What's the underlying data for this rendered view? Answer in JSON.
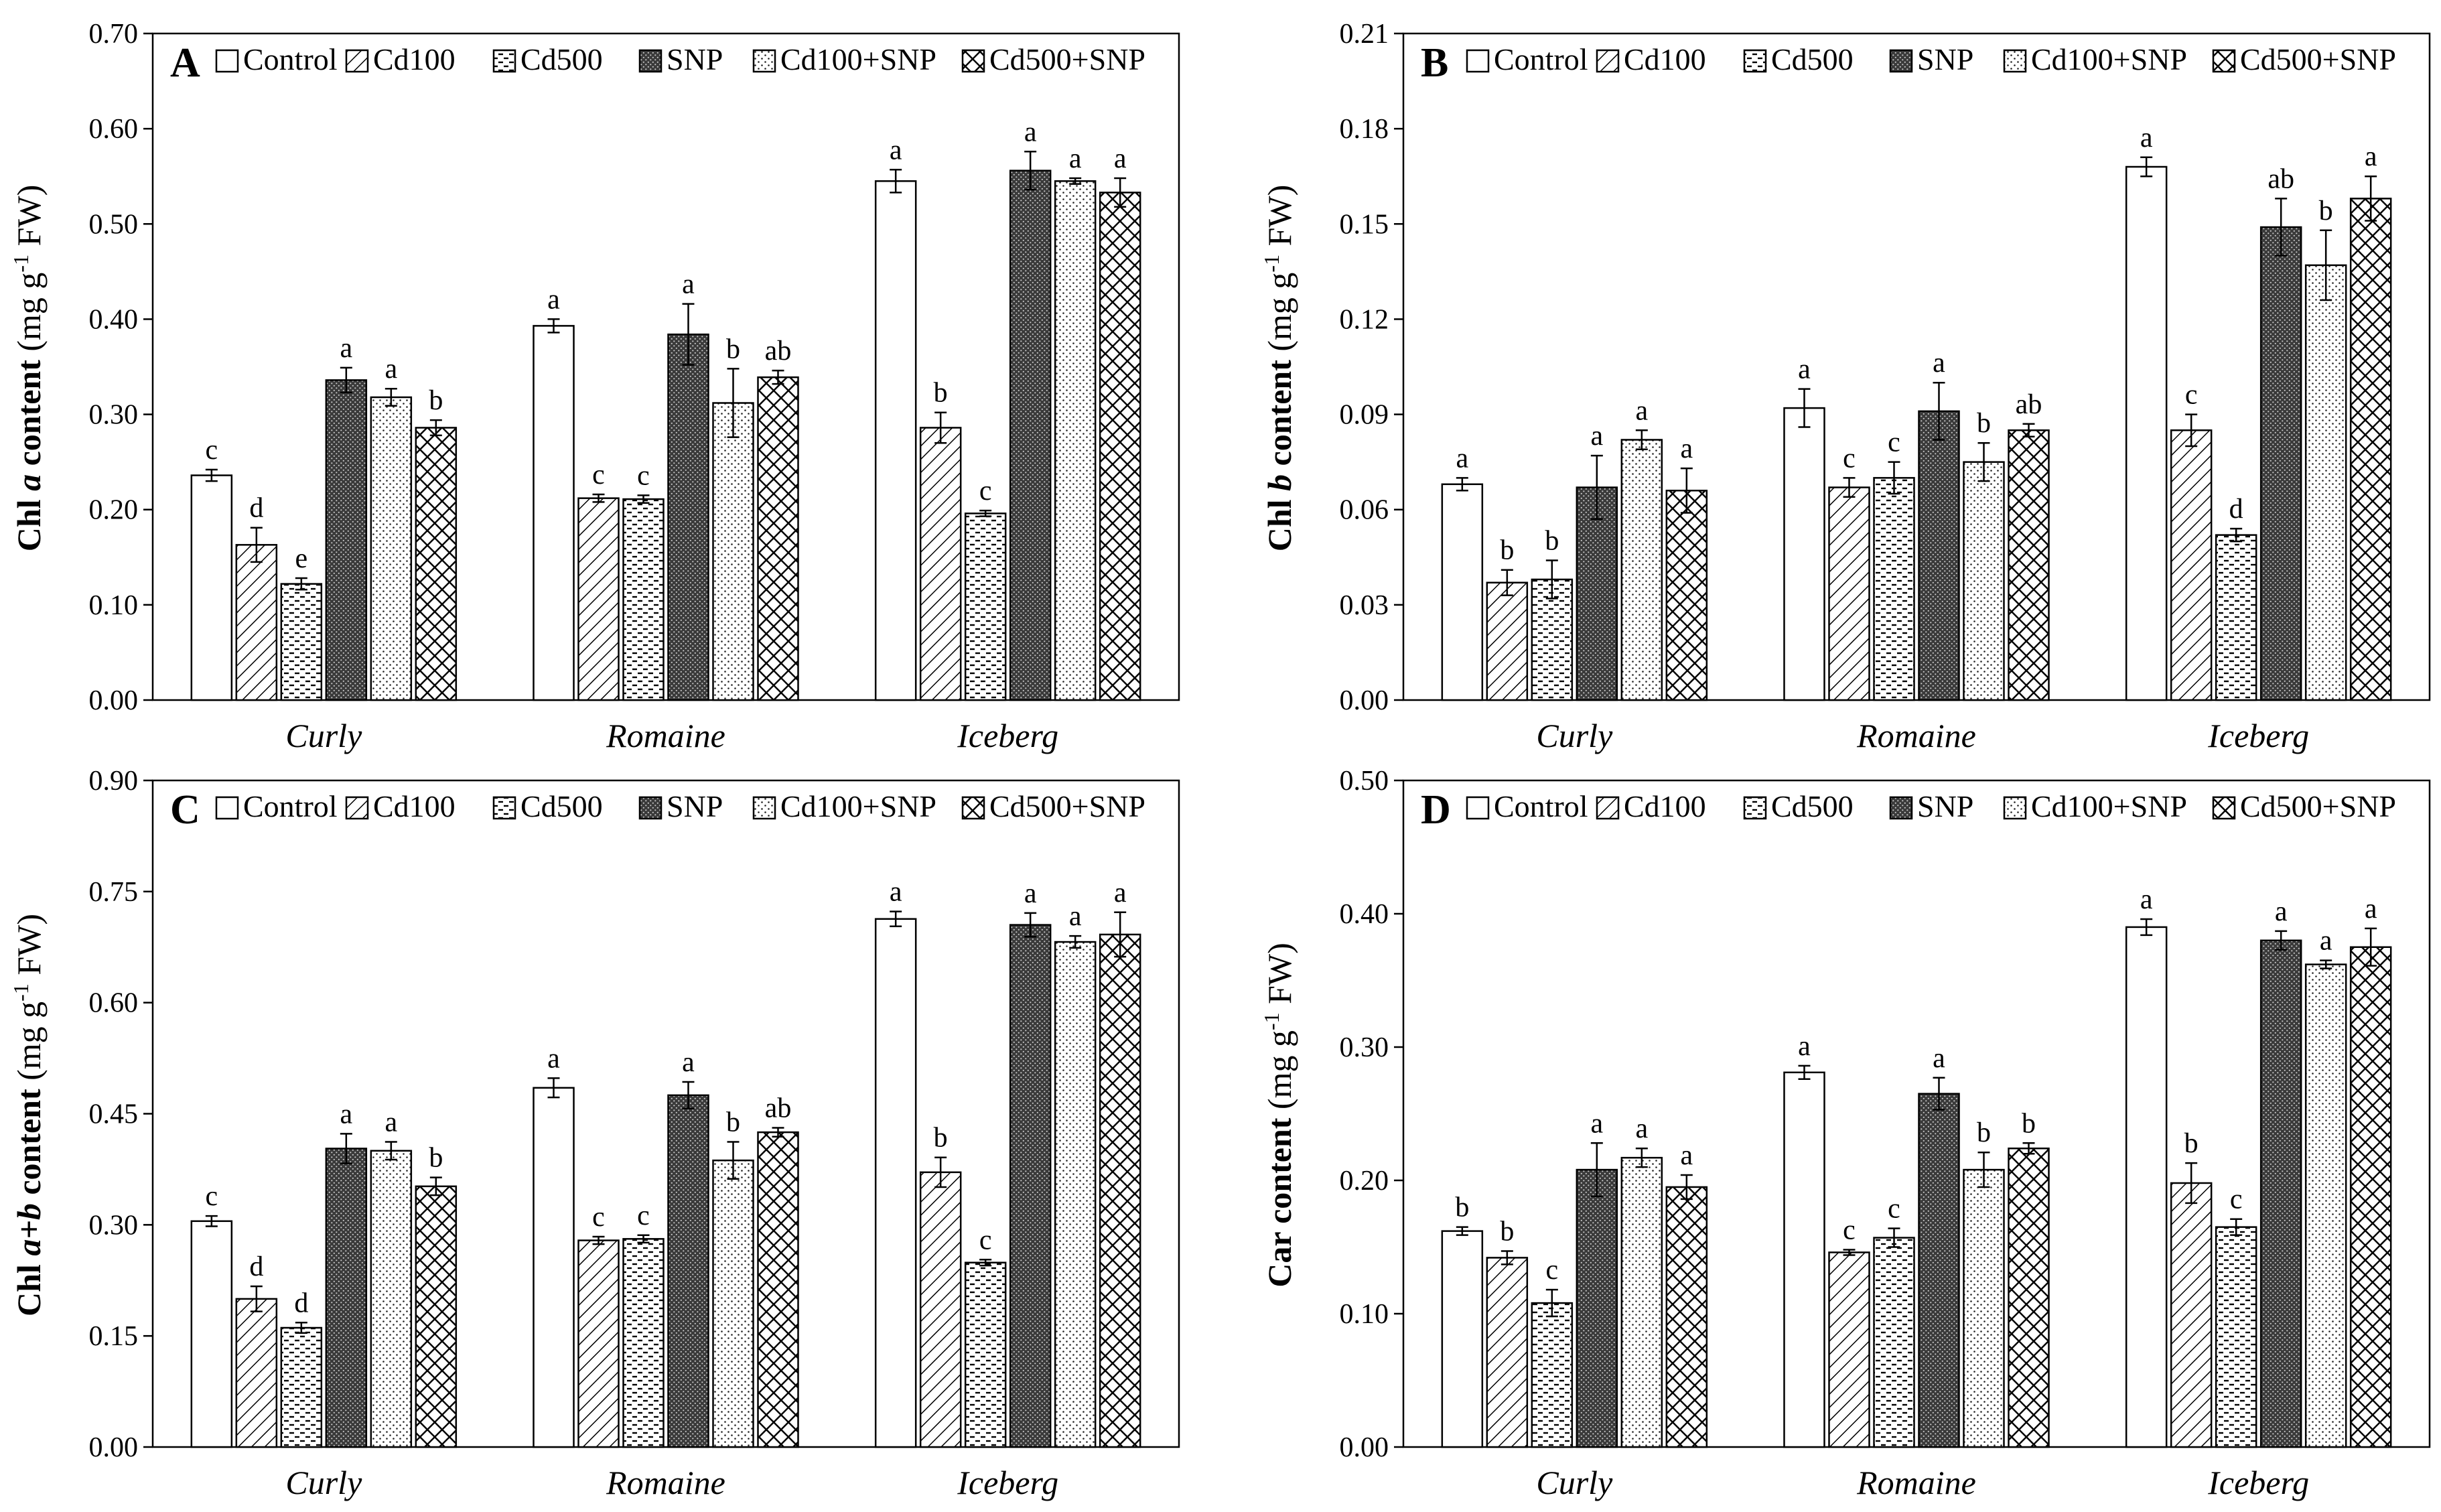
{
  "legend": [
    "Control",
    "Cd100",
    "Cd500",
    "SNP",
    "Cd100+SNP",
    "Cd500+SNP"
  ],
  "categories": [
    "Curly",
    "Romaine",
    "Iceberg"
  ],
  "chart_data": [
    {
      "type": "bar",
      "panel": "A",
      "ylabel": {
        "bold": "Chl ",
        "italic": "a",
        "bold2": " content",
        "unit": "(mg  g",
        "sup": "-1",
        "unit2": " FW)"
      },
      "ylim": [
        0,
        0.7
      ],
      "yticks": [
        0,
        0.1,
        0.2,
        0.3,
        0.4,
        0.5,
        0.6,
        0.7
      ],
      "tick_decimals": 2,
      "categories": [
        "Curly",
        "Romaine",
        "Iceberg"
      ],
      "series": [
        {
          "name": "Control",
          "values": [
            0.236,
            0.393,
            0.545
          ],
          "errors": [
            0.006,
            0.007,
            0.012
          ],
          "letters": [
            "c",
            "a",
            "a"
          ]
        },
        {
          "name": "Cd100",
          "values": [
            0.163,
            0.212,
            0.286
          ],
          "errors": [
            0.018,
            0.004,
            0.016
          ],
          "letters": [
            "d",
            "c",
            "b"
          ]
        },
        {
          "name": "Cd500",
          "values": [
            0.122,
            0.211,
            0.196
          ],
          "errors": [
            0.006,
            0.004,
            0.003
          ],
          "letters": [
            "e",
            "c",
            "c"
          ]
        },
        {
          "name": "SNP",
          "values": [
            0.336,
            0.384,
            0.556
          ],
          "errors": [
            0.013,
            0.032,
            0.02
          ],
          "letters": [
            "a",
            "a",
            "a"
          ]
        },
        {
          "name": "Cd100+SNP",
          "values": [
            0.318,
            0.312,
            0.545
          ],
          "errors": [
            0.009,
            0.036,
            0.003
          ],
          "letters": [
            "a",
            "b",
            "a"
          ]
        },
        {
          "name": "Cd500+SNP",
          "values": [
            0.286,
            0.339,
            0.533
          ],
          "errors": [
            0.008,
            0.007,
            0.015
          ],
          "letters": [
            "b",
            "ab",
            "a"
          ]
        }
      ]
    },
    {
      "type": "bar",
      "panel": "B",
      "ylabel": {
        "bold": "Chl ",
        "italic": "b",
        "bold2": " content",
        "unit": "(mg  g",
        "sup": "-1",
        "unit2": " FW)"
      },
      "ylim": [
        0,
        0.21
      ],
      "yticks": [
        0,
        0.03,
        0.06,
        0.09,
        0.12,
        0.15,
        0.18,
        0.21
      ],
      "tick_decimals": 2,
      "categories": [
        "Curly",
        "Romaine",
        "Iceberg"
      ],
      "series": [
        {
          "name": "Control",
          "values": [
            0.068,
            0.092,
            0.168
          ],
          "errors": [
            0.002,
            0.006,
            0.003
          ],
          "letters": [
            "a",
            "a",
            "a"
          ]
        },
        {
          "name": "Cd100",
          "values": [
            0.037,
            0.067,
            0.085
          ],
          "errors": [
            0.004,
            0.003,
            0.005
          ],
          "letters": [
            "b",
            "c",
            "c"
          ]
        },
        {
          "name": "Cd500",
          "values": [
            0.038,
            0.07,
            0.052
          ],
          "errors": [
            0.006,
            0.005,
            0.002
          ],
          "letters": [
            "b",
            "c",
            "d"
          ]
        },
        {
          "name": "SNP",
          "values": [
            0.067,
            0.091,
            0.149
          ],
          "errors": [
            0.01,
            0.009,
            0.009
          ],
          "letters": [
            "a",
            "a",
            "ab"
          ]
        },
        {
          "name": "Cd100+SNP",
          "values": [
            0.082,
            0.075,
            0.137
          ],
          "errors": [
            0.003,
            0.006,
            0.011
          ],
          "letters": [
            "a",
            "b",
            "b"
          ]
        },
        {
          "name": "Cd500+SNP",
          "values": [
            0.066,
            0.085,
            0.158
          ],
          "errors": [
            0.007,
            0.002,
            0.007
          ],
          "letters": [
            "a",
            "ab",
            "a"
          ]
        }
      ]
    },
    {
      "type": "bar",
      "panel": "C",
      "ylabel": {
        "bold": "Chl ",
        "italic": "a+b",
        "bold2": " content",
        "unit": "(mg  g",
        "sup": "-1",
        "unit2": " FW)"
      },
      "ylim": [
        0,
        0.9
      ],
      "yticks": [
        0,
        0.15,
        0.3,
        0.45,
        0.6,
        0.75,
        0.9
      ],
      "tick_decimals": 2,
      "categories": [
        "Curly",
        "Romaine",
        "Iceberg"
      ],
      "series": [
        {
          "name": "Control",
          "values": [
            0.305,
            0.485,
            0.713
          ],
          "errors": [
            0.007,
            0.013,
            0.01
          ],
          "letters": [
            "c",
            "a",
            "a"
          ]
        },
        {
          "name": "Cd100",
          "values": [
            0.2,
            0.279,
            0.371
          ],
          "errors": [
            0.017,
            0.005,
            0.02
          ],
          "letters": [
            "d",
            "c",
            "b"
          ]
        },
        {
          "name": "Cd500",
          "values": [
            0.161,
            0.281,
            0.249
          ],
          "errors": [
            0.007,
            0.005,
            0.004
          ],
          "letters": [
            "d",
            "c",
            "c"
          ]
        },
        {
          "name": "SNP",
          "values": [
            0.403,
            0.475,
            0.705
          ],
          "errors": [
            0.02,
            0.018,
            0.016
          ],
          "letters": [
            "a",
            "a",
            "a"
          ]
        },
        {
          "name": "Cd100+SNP",
          "values": [
            0.4,
            0.387,
            0.682
          ],
          "errors": [
            0.012,
            0.025,
            0.008
          ],
          "letters": [
            "a",
            "b",
            "a"
          ]
        },
        {
          "name": "Cd500+SNP",
          "values": [
            0.352,
            0.425,
            0.692
          ],
          "errors": [
            0.012,
            0.006,
            0.03
          ],
          "letters": [
            "b",
            "ab",
            "a"
          ]
        }
      ]
    },
    {
      "type": "bar",
      "panel": "D",
      "ylabel": {
        "bold": "Car content",
        "italic": "",
        "bold2": "",
        "unit": "(mg  g",
        "sup": "-1",
        "unit2": " FW)"
      },
      "ylim": [
        0,
        0.5
      ],
      "yticks": [
        0,
        0.1,
        0.2,
        0.3,
        0.4,
        0.5
      ],
      "tick_decimals": 2,
      "categories": [
        "Curly",
        "Romaine",
        "Iceberg"
      ],
      "series": [
        {
          "name": "Control",
          "values": [
            0.162,
            0.281,
            0.39
          ],
          "errors": [
            0.003,
            0.005,
            0.006
          ],
          "letters": [
            "b",
            "a",
            "a"
          ]
        },
        {
          "name": "Cd100",
          "values": [
            0.142,
            0.146,
            0.198
          ],
          "errors": [
            0.005,
            0.002,
            0.015
          ],
          "letters": [
            "b",
            "c",
            "b"
          ]
        },
        {
          "name": "Cd500",
          "values": [
            0.108,
            0.157,
            0.165
          ],
          "errors": [
            0.01,
            0.007,
            0.006
          ],
          "letters": [
            "c",
            "c",
            "c"
          ]
        },
        {
          "name": "SNP",
          "values": [
            0.208,
            0.265,
            0.38
          ],
          "errors": [
            0.02,
            0.012,
            0.007
          ],
          "letters": [
            "a",
            "a",
            "a"
          ]
        },
        {
          "name": "Cd100+SNP",
          "values": [
            0.217,
            0.208,
            0.362
          ],
          "errors": [
            0.007,
            0.013,
            0.003
          ],
          "letters": [
            "a",
            "b",
            "a"
          ]
        },
        {
          "name": "Cd500+SNP",
          "values": [
            0.195,
            0.224,
            0.375
          ],
          "errors": [
            0.009,
            0.004,
            0.014
          ],
          "letters": [
            "a",
            "b",
            "a"
          ]
        }
      ]
    }
  ]
}
